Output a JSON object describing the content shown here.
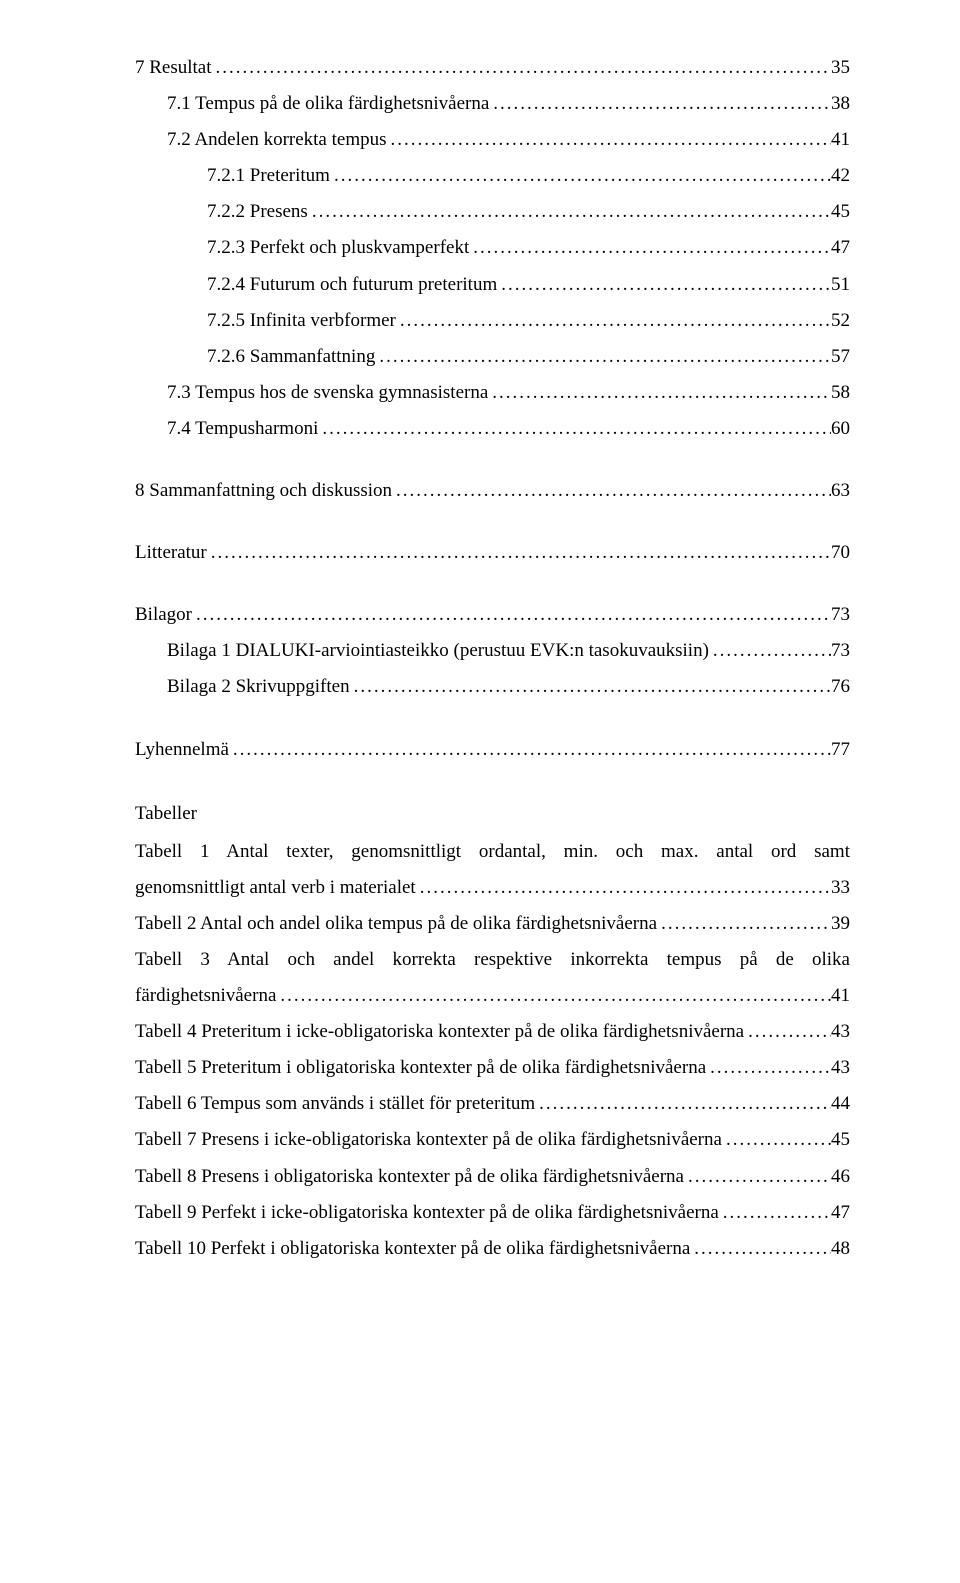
{
  "toc": [
    {
      "level": 0,
      "text": "7   Resultat",
      "page": "35",
      "space": "lg"
    },
    {
      "level": 1,
      "text": "7.1   Tempus på de olika färdighetsnivåerna",
      "page": "38"
    },
    {
      "level": 1,
      "text": "7.2   Andelen korrekta tempus",
      "page": "41"
    },
    {
      "level": 2,
      "text": "7.2.1 Preteritum",
      "page": "42"
    },
    {
      "level": 2,
      "text": "7.2.2 Presens",
      "page": "45"
    },
    {
      "level": 2,
      "text": "7.2.3 Perfekt och pluskvamperfekt",
      "page": "47"
    },
    {
      "level": 2,
      "text": "7.2.4 Futurum och futurum preteritum",
      "page": "51"
    },
    {
      "level": 2,
      "text": "7.2.5 Infinita verbformer",
      "page": "52"
    },
    {
      "level": 2,
      "text": "7.2.6 Sammanfattning",
      "page": "57"
    },
    {
      "level": 1,
      "text": "7.3   Tempus hos de svenska gymnasisterna",
      "page": "58"
    },
    {
      "level": 1,
      "text": "7.4   Tempusharmoni",
      "page": "60"
    },
    {
      "level": 0,
      "text": "8   Sammanfattning och diskussion",
      "page": "63",
      "space": "md"
    },
    {
      "level": 0,
      "text": "Litteratur",
      "page": "70",
      "space": "md"
    },
    {
      "level": 0,
      "text": "Bilagor",
      "page": "73",
      "space": "md"
    },
    {
      "level": 1,
      "text": "Bilaga 1 DIALUKI-arviointiasteikko (perustuu EVK:n tasokuvauksiin)",
      "page": "73"
    },
    {
      "level": 1,
      "text": "Bilaga 2 Skrivuppgiften",
      "page": "76"
    },
    {
      "level": 0,
      "text": "Lyhennelmä",
      "page": "77",
      "space": "md"
    }
  ],
  "tables_heading": "Tabeller",
  "tables": [
    {
      "text_parts": [
        "Tabell 1 Antal texter, genomsnittligt ordantal, min. och max. antal ord samt",
        "genomsnittligt antal verb i materialet"
      ],
      "page": "33",
      "justify_first": true
    },
    {
      "text_parts": [
        "Tabell 2 Antal och andel olika tempus på de olika färdighetsnivåerna"
      ],
      "page": "39"
    },
    {
      "text_parts": [
        "Tabell 3 Antal och andel korrekta respektive inkorrekta tempus på de olika",
        "färdighetsnivåerna"
      ],
      "page": "41",
      "justify_first": true
    },
    {
      "text_parts": [
        "Tabell 4 Preteritum i icke-obligatoriska kontexter på de olika färdighetsnivåerna"
      ],
      "page": "43"
    },
    {
      "text_parts": [
        "Tabell 5 Preteritum i obligatoriska kontexter på de olika färdighetsnivåerna"
      ],
      "page": "43"
    },
    {
      "text_parts": [
        "Tabell 6 Tempus som används i stället för preteritum"
      ],
      "page": "44"
    },
    {
      "text_parts": [
        "Tabell 7 Presens i icke-obligatoriska kontexter på de olika färdighetsnivåerna"
      ],
      "page": "45"
    },
    {
      "text_parts": [
        "Tabell 8 Presens i obligatoriska kontexter på de olika färdighetsnivåerna"
      ],
      "page": "46"
    },
    {
      "text_parts": [
        "Tabell 9 Perfekt i icke-obligatoriska kontexter på de olika färdighetsnivåerna"
      ],
      "page": "47"
    },
    {
      "text_parts": [
        "Tabell 10 Perfekt i obligatoriska kontexter på de olika färdighetsnivåerna"
      ],
      "page": "48"
    }
  ]
}
